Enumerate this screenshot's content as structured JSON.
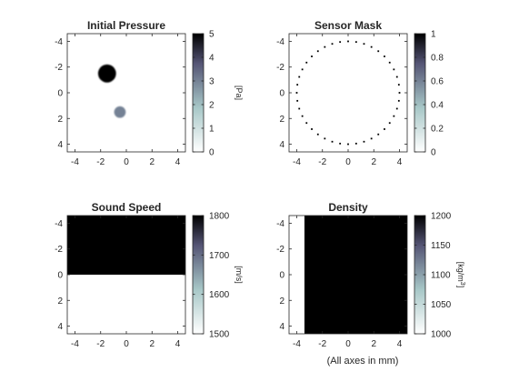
{
  "figure": {
    "background": "#ffffff",
    "axis_color": "#262626",
    "footer_label": "(All axes in mm)"
  },
  "chart_data": [
    {
      "type": "heatmap",
      "title": "Initial Pressure",
      "xlim": [
        -4.6,
        4.6
      ],
      "ylim": [
        -4.6,
        4.6
      ],
      "y_reversed": true,
      "xticks": [
        -4,
        -2,
        0,
        2,
        4
      ],
      "yticks": [
        -4,
        -2,
        0,
        2,
        4
      ],
      "content": {
        "kind": "discs",
        "items": [
          {
            "cx": -1.5,
            "cy": -1.5,
            "r": 0.7,
            "value": 5
          },
          {
            "cx": -0.5,
            "cy": 1.5,
            "r": 0.45,
            "value": 3
          }
        ]
      },
      "colorbar": {
        "range": [
          0,
          5
        ],
        "ticks": [
          0,
          1,
          2,
          3,
          4,
          5
        ],
        "tick_labels": [
          "0",
          "1",
          "2",
          "3",
          "4",
          "5"
        ],
        "label": "[Pa]",
        "label_sup": ""
      }
    },
    {
      "type": "heatmap",
      "title": "Sensor Mask",
      "xlim": [
        -4.6,
        4.6
      ],
      "ylim": [
        -4.6,
        4.6
      ],
      "y_reversed": true,
      "xticks": [
        -4,
        -2,
        0,
        2,
        4
      ],
      "yticks": [
        -4,
        -2,
        0,
        2,
        4
      ],
      "content": {
        "kind": "ring",
        "cx": 0,
        "cy": 0,
        "r": 4.0,
        "points": 40,
        "value": 1
      },
      "colorbar": {
        "range": [
          0,
          1
        ],
        "ticks": [
          0,
          0.2,
          0.4,
          0.6,
          0.8,
          1
        ],
        "tick_labels": [
          "0",
          "0.2",
          "0.4",
          "0.6",
          "0.8",
          "1"
        ],
        "label": "",
        "label_sup": ""
      }
    },
    {
      "type": "heatmap",
      "title": "Sound Speed",
      "xlim": [
        -4.6,
        4.6
      ],
      "ylim": [
        -4.6,
        4.6
      ],
      "y_reversed": true,
      "xticks": [
        -4,
        -2,
        0,
        2,
        4
      ],
      "yticks": [
        -4,
        -2,
        0,
        2,
        4
      ],
      "content": {
        "kind": "regions",
        "background_value": 1500,
        "items": [
          {
            "x0": -4.6,
            "x1": 4.6,
            "y0": -4.6,
            "y1": 0,
            "value": 1800
          }
        ]
      },
      "colorbar": {
        "range": [
          1500,
          1800
        ],
        "ticks": [
          1500,
          1600,
          1700,
          1800
        ],
        "tick_labels": [
          "1500",
          "1600",
          "1700",
          "1800"
        ],
        "label": "[m/s]",
        "label_sup": ""
      }
    },
    {
      "type": "heatmap",
      "title": "Density",
      "xlim": [
        -4.6,
        4.6
      ],
      "ylim": [
        -4.6,
        4.6
      ],
      "y_reversed": true,
      "xticks": [
        -4,
        -2,
        0,
        2,
        4
      ],
      "yticks": [
        -4,
        -2,
        0,
        2,
        4
      ],
      "xlabel": "(All axes in mm)",
      "content": {
        "kind": "regions",
        "background_value": 1000,
        "items": [
          {
            "x0": -3.4,
            "x1": 4.6,
            "y0": -4.6,
            "y1": 4.6,
            "value": 1200
          }
        ]
      },
      "colorbar": {
        "range": [
          1000,
          1200
        ],
        "ticks": [
          1000,
          1050,
          1100,
          1150,
          1200
        ],
        "tick_labels": [
          "1000",
          "1050",
          "1100",
          "1150",
          "1200"
        ],
        "label": "[kg/m",
        "label_sup": "3",
        "label_end": "]"
      }
    }
  ]
}
